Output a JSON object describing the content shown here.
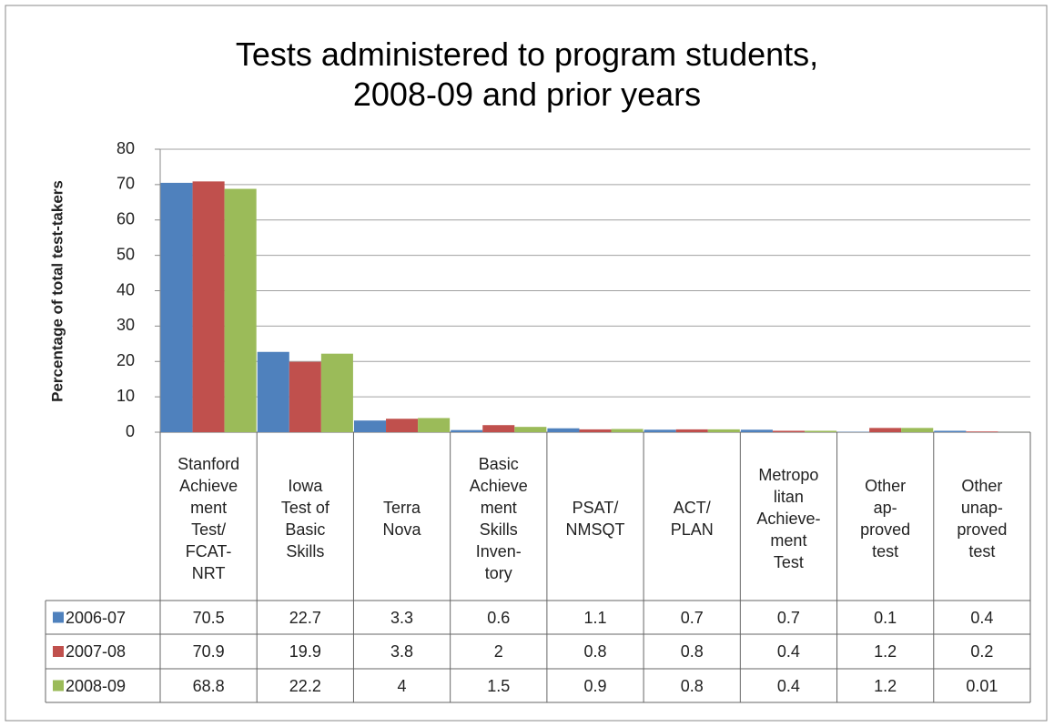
{
  "chart_data": {
    "type": "bar",
    "title": "Tests administered to program students,\n2008-09 and prior years",
    "y_label": "Percentage of total test-takers",
    "categories": [
      "Stanford\nAchieve\nment\nTest/\nFCAT-\nNRT",
      "Iowa\nTest of\nBasic\nSkills",
      "Terra\nNova",
      "Basic\nAchieve\nment\nSkills\nInven-\ntory",
      "PSAT/\nNMSQT",
      "ACT/\nPLAN",
      "Metropo\nlitan\nAchieve-\nment\nTest",
      "Other\nap-\nproved\ntest",
      "Other\nunap-\nproved\ntest"
    ],
    "series": [
      {
        "name": "2006-07",
        "color": "#4f81bd",
        "values": [
          70.5,
          22.7,
          3.3,
          0.6,
          1.1,
          0.7,
          0.7,
          0.1,
          0.4
        ]
      },
      {
        "name": "2007-08",
        "color": "#c0504d",
        "values": [
          70.9,
          19.9,
          3.8,
          2,
          0.8,
          0.8,
          0.4,
          1.2,
          0.2
        ]
      },
      {
        "name": "2008-09",
        "color": "#9bbb59",
        "values": [
          68.8,
          22.2,
          4,
          1.5,
          0.9,
          0.8,
          0.4,
          1.2,
          0.01
        ]
      }
    ],
    "ylim": [
      0,
      80
    ],
    "yticks": [
      0,
      10,
      20,
      30,
      40,
      50,
      60,
      70,
      80
    ],
    "grid": true
  }
}
